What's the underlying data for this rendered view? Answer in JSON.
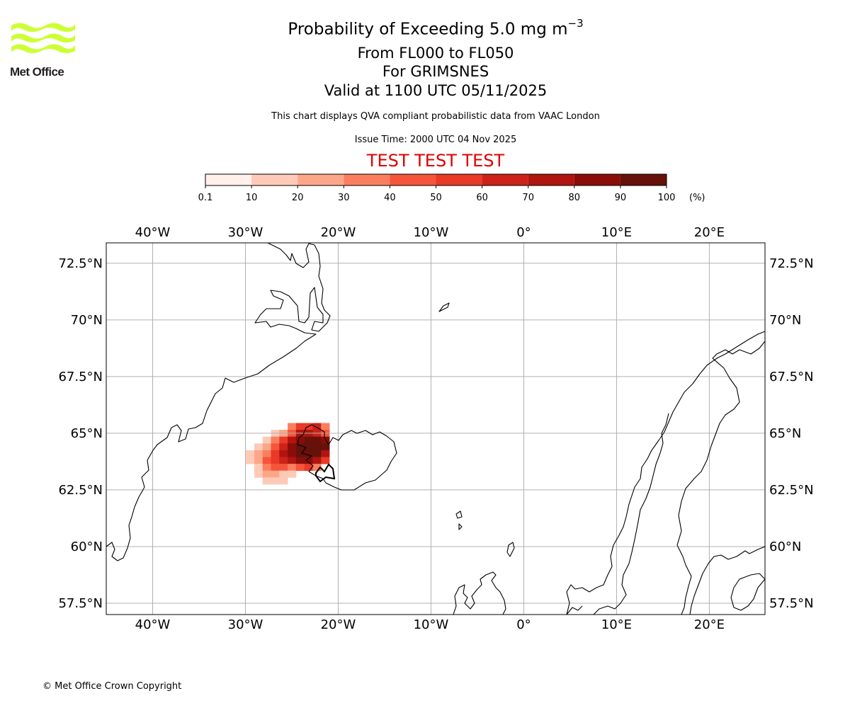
{
  "header": {
    "title_main": "Probability of Exceeding 5.0 mg m",
    "title_exponent": "−3",
    "level_range": "From FL000 to FL050",
    "volcano": "For GRIMSNES",
    "valid_time": "Valid at 1100 UTC 05/11/2025",
    "description": "This chart displays QVA compliant probabilistic data from VAAC London",
    "issue_time": "Issue Time: 2000 UTC 04 Nov 2025",
    "test_banner": "TEST TEST TEST"
  },
  "logo": {
    "text": "Met Office",
    "wave_color": "#ccff33"
  },
  "colorbar": {
    "ticks": [
      "0.1",
      "10",
      "20",
      "30",
      "40",
      "50",
      "60",
      "70",
      "80",
      "90",
      "100"
    ],
    "unit": "(%)",
    "colors": [
      "#fff0ec",
      "#fdcab7",
      "#fca689",
      "#fb7f5f",
      "#f5553b",
      "#e83a27",
      "#cc2219",
      "#b0150f",
      "#8a0d09",
      "#66120b"
    ]
  },
  "chart_data": {
    "type": "heatmap",
    "title": "Probability of Exceeding 5.0 mg m−3",
    "projection": "PlateCarree",
    "lon_range": [
      -45,
      26
    ],
    "lat_range": [
      57,
      73.4
    ],
    "x_ticks": [
      "40°W",
      "30°W",
      "20°W",
      "10°W",
      "0°",
      "10°E",
      "20°E"
    ],
    "x_tick_values": [
      -40,
      -30,
      -20,
      -10,
      0,
      10,
      20
    ],
    "y_ticks": [
      "72.5°N",
      "70°N",
      "67.5°N",
      "65°N",
      "62.5°N",
      "60°N",
      "57.5°N"
    ],
    "y_tick_values": [
      72.5,
      70,
      67.5,
      65,
      62.5,
      60,
      57.5
    ],
    "grid": true,
    "value_unit": "%",
    "cell_size_deg": [
      0.9,
      0.3
    ],
    "cells": [
      [
        -25.0,
        65.3,
        3
      ],
      [
        -24.1,
        65.3,
        5
      ],
      [
        -23.2,
        65.3,
        5
      ],
      [
        -22.3,
        65.3,
        6
      ],
      [
        -21.4,
        65.3,
        3
      ],
      [
        -26.8,
        65.0,
        1
      ],
      [
        -25.9,
        65.0,
        2
      ],
      [
        -25.0,
        65.0,
        4
      ],
      [
        -24.1,
        65.0,
        7
      ],
      [
        -23.2,
        65.0,
        7
      ],
      [
        -22.3,
        65.0,
        6
      ],
      [
        -21.4,
        65.0,
        4
      ],
      [
        -27.7,
        64.7,
        1
      ],
      [
        -26.8,
        64.7,
        3
      ],
      [
        -25.9,
        64.7,
        5
      ],
      [
        -25.0,
        64.7,
        7
      ],
      [
        -24.1,
        64.7,
        8
      ],
      [
        -23.2,
        64.7,
        9
      ],
      [
        -22.3,
        64.7,
        9
      ],
      [
        -21.4,
        64.7,
        8
      ],
      [
        -28.6,
        64.4,
        1
      ],
      [
        -27.7,
        64.4,
        2
      ],
      [
        -26.8,
        64.4,
        4
      ],
      [
        -25.9,
        64.4,
        6
      ],
      [
        -25.0,
        64.4,
        8
      ],
      [
        -24.1,
        64.4,
        9
      ],
      [
        -23.2,
        64.4,
        9
      ],
      [
        -22.3,
        64.4,
        9
      ],
      [
        -21.4,
        64.4,
        9
      ],
      [
        -29.5,
        64.1,
        1
      ],
      [
        -28.6,
        64.1,
        2
      ],
      [
        -27.7,
        64.1,
        3
      ],
      [
        -26.8,
        64.1,
        5
      ],
      [
        -25.9,
        64.1,
        7
      ],
      [
        -25.0,
        64.1,
        8
      ],
      [
        -24.1,
        64.1,
        9
      ],
      [
        -23.2,
        64.1,
        9
      ],
      [
        -22.3,
        64.1,
        9
      ],
      [
        -21.4,
        64.1,
        7
      ],
      [
        -29.5,
        63.8,
        1
      ],
      [
        -28.6,
        63.8,
        2
      ],
      [
        -27.7,
        63.8,
        4
      ],
      [
        -26.8,
        63.8,
        5
      ],
      [
        -25.9,
        63.8,
        6
      ],
      [
        -25.0,
        63.8,
        7
      ],
      [
        -24.1,
        63.8,
        8
      ],
      [
        -23.2,
        63.8,
        8
      ],
      [
        -22.3,
        63.8,
        7
      ],
      [
        -21.4,
        63.8,
        5
      ],
      [
        -28.6,
        63.5,
        1
      ],
      [
        -27.7,
        63.5,
        3
      ],
      [
        -26.8,
        63.5,
        4
      ],
      [
        -25.9,
        63.5,
        4
      ],
      [
        -25.0,
        63.5,
        3
      ],
      [
        -24.1,
        63.5,
        4
      ],
      [
        -23.2,
        63.5,
        5
      ],
      [
        -22.3,
        63.5,
        3
      ],
      [
        -28.6,
        63.2,
        1
      ],
      [
        -27.7,
        63.2,
        2
      ],
      [
        -26.8,
        63.2,
        2
      ],
      [
        -25.9,
        63.2,
        1
      ],
      [
        -25.0,
        63.2,
        1
      ],
      [
        -27.7,
        62.9,
        1
      ],
      [
        -26.8,
        62.9,
        1
      ],
      [
        -25.9,
        62.9,
        1
      ]
    ]
  },
  "footer": {
    "copyright": "© Met Office Crown Copyright"
  }
}
